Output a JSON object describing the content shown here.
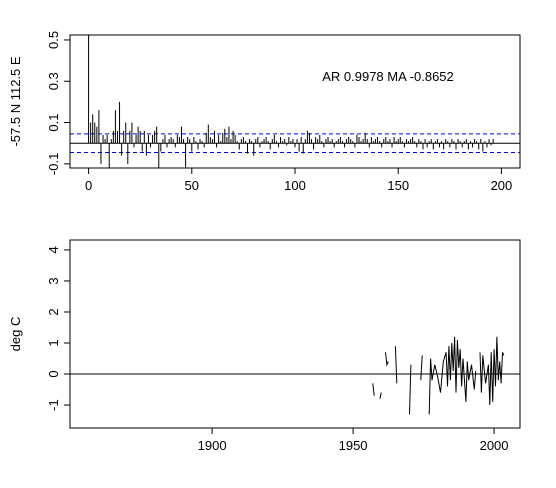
{
  "chart_data": [
    {
      "type": "acf",
      "ylabel": "-57.5 N 112.5 E",
      "annotation": "AR 0.9978  MA -0.8652",
      "xlim": [
        -9,
        209
      ],
      "xticks": [
        0,
        50,
        100,
        150,
        200
      ],
      "ylim": [
        -0.12,
        0.524
      ],
      "yticks": [
        -0.1,
        0.1,
        0.3,
        0.5
      ],
      "color": "#000000",
      "hline": 0,
      "ci": [
        0.045,
        -0.045
      ],
      "ci_color": "#0000ff",
      "x": [
        0,
        1,
        2,
        3,
        4,
        5,
        6,
        7,
        8,
        9,
        10,
        11,
        12,
        13,
        14,
        15,
        16,
        17,
        18,
        19,
        20,
        21,
        22,
        23,
        24,
        25,
        26,
        27,
        28,
        29,
        30,
        31,
        32,
        33,
        34,
        35,
        36,
        37,
        38,
        39,
        40,
        41,
        42,
        43,
        44,
        45,
        46,
        47,
        48,
        49,
        50,
        51,
        52,
        53,
        54,
        55,
        56,
        57,
        58,
        59,
        60,
        61,
        62,
        63,
        64,
        65,
        66,
        67,
        68,
        69,
        70,
        71,
        72,
        73,
        74,
        75,
        76,
        77,
        78,
        79,
        80,
        81,
        82,
        83,
        84,
        85,
        86,
        87,
        88,
        89,
        90,
        91,
        92,
        93,
        94,
        95,
        96,
        97,
        98,
        99,
        100,
        101,
        102,
        103,
        104,
        105,
        106,
        107,
        108,
        109,
        110,
        111,
        112,
        113,
        114,
        115,
        116,
        117,
        118,
        119,
        120,
        121,
        122,
        123,
        124,
        125,
        126,
        127,
        128,
        129,
        130,
        131,
        132,
        133,
        134,
        135,
        136,
        137,
        138,
        139,
        140,
        141,
        142,
        143,
        144,
        145,
        146,
        147,
        148,
        149,
        150,
        151,
        152,
        153,
        154,
        155,
        156,
        157,
        158,
        159,
        160,
        161,
        162,
        163,
        164,
        165,
        166,
        167,
        168,
        169,
        170,
        171,
        172,
        173,
        174,
        175,
        176,
        177,
        178,
        179,
        180,
        181,
        182,
        183,
        184,
        185,
        186,
        187,
        188,
        189,
        190,
        191,
        192,
        193,
        194,
        195,
        196
      ],
      "values": [
        1,
        0.1,
        0.14,
        0.1,
        0.08,
        0.16,
        -0.1,
        0.04,
        0.02,
        0.04,
        -0.12,
        0.02,
        0.06,
        0.16,
        0.06,
        0.2,
        -0.06,
        0.06,
        0.1,
        -0.1,
        0.06,
        0.1,
        -0.02,
        0.04,
        0.08,
        0.06,
        -0.04,
        0.06,
        -0.06,
        0.04,
        -0.02,
        0.04,
        0.06,
        0.08,
        -0.14,
        -0.04,
        0.02,
        0.04,
        -0.02,
        0.02,
        0.03,
        0.02,
        -0.02,
        0.04,
        0.03,
        0.08,
        0.02,
        -0.14,
        0.03,
        0.02,
        -0.04,
        0.03,
        0.01,
        -0.03,
        0.02,
        0.01,
        -0.02,
        0.05,
        0.09,
        0.03,
        0.02,
        0.06,
        -0.02,
        0.04,
        0.01,
        0.05,
        0.07,
        0.03,
        0.08,
        0.02,
        0.06,
        0.04,
        0.01,
        -0.03,
        0.02,
        0.03,
        0.01,
        -0.05,
        0.02,
        0.01,
        -0.06,
        0.02,
        0.03,
        -0.02,
        0.01,
        0.02,
        0.03,
        0.01,
        -0.03,
        0.02,
        0.04,
        0.01,
        -0.02,
        0.03,
        0.01,
        0.02,
        -0.01,
        0.03,
        0.01,
        0.02,
        -0.02,
        0.02,
        -0.04,
        0.03,
        -0.05,
        0.02,
        0.06,
        0.05,
        0.02,
        -0.03,
        0.03,
        0.02,
        0.04,
        0.01,
        -0.02,
        0.02,
        0.03,
        0.01,
        0.02,
        -0.02,
        0.01,
        0.02,
        0.03,
        0.01,
        -0.02,
        0.02,
        0.03,
        0.02,
        0.01,
        -0.02,
        0.04,
        0.03,
        0.01,
        0.02,
        0.05,
        0.02,
        -0.02,
        0.03,
        0.01,
        0.02,
        0.03,
        0.01,
        -0.02,
        0.02,
        0.03,
        0.01,
        0.02,
        -0.02,
        0.03,
        0.01,
        0.02,
        0.03,
        0.01,
        -0.02,
        0.02,
        0.01,
        0.02,
        0.03,
        0.01,
        -0.02,
        0.02,
        0.01,
        -0.03,
        0.02,
        -0.02,
        0.01,
        0.02,
        -0.03,
        0.01,
        0.02,
        -0.02,
        0.01,
        -0.03,
        0.02,
        0.01,
        -0.02,
        0.02,
        0.01,
        -0.03,
        0.02,
        0.01,
        -0.02,
        0.01,
        0.02,
        -0.03,
        0.01,
        -0.02,
        0.02,
        0.01,
        -0.03,
        0.02,
        -0.04,
        0.01,
        -0.02,
        0.02,
        -0.01,
        0.02
      ]
    },
    {
      "type": "line",
      "ylabel": "deg C",
      "xlim": [
        1849.6,
        2009.2
      ],
      "xticks": [
        1900,
        1950,
        2000
      ],
      "ylim": [
        -1.74,
        4.32
      ],
      "yticks": [
        -1,
        0,
        1,
        2,
        3,
        4
      ],
      "color": "#000000",
      "hline": 0,
      "x": [
        1957,
        1957.5,
        1958,
        1959.5,
        1960,
        1960.5,
        1961.5,
        1962,
        1962.5,
        1963,
        1965,
        1965.5,
        1966,
        1970,
        1970.5,
        1971,
        1974,
        1974.5,
        1975,
        1977,
        1977.5,
        1978,
        1979,
        1980,
        1981,
        1982,
        1983,
        1983.5,
        1984,
        1984.5,
        1985,
        1985.5,
        1986,
        1986.5,
        1987,
        1987.5,
        1988,
        1988.5,
        1989,
        1990,
        1990.5,
        1991,
        1992,
        1993,
        1993.5,
        1994,
        1995,
        1995.5,
        1996,
        1997,
        1998,
        1998.5,
        1999,
        1999.5,
        2000,
        2000.5,
        2001,
        2001.5,
        2002,
        2002.5,
        2003,
        2003.5
      ],
      "values": [
        -0.3,
        -0.7,
        null,
        -0.8,
        -0.6,
        null,
        0.7,
        0.3,
        0.4,
        null,
        0.9,
        -0.3,
        null,
        -1.3,
        0.3,
        null,
        -0.2,
        0.6,
        null,
        -1.3,
        0.5,
        -0.2,
        0.3,
        -0.1,
        -0.6,
        0.4,
        0.7,
        -0.4,
        0.9,
        -0.2,
        1.0,
        0.1,
        1.2,
        -0.6,
        1.1,
        0.2,
        0.8,
        -0.4,
        0.5,
        -0.9,
        0.4,
        -0.2,
        0.3,
        -0.5,
        0.1,
        null,
        0.7,
        -0.6,
        0.6,
        -0.3,
        0.3,
        -1.0,
        0.7,
        -0.9,
        0.8,
        -0.4,
        1.2,
        -0.2,
        0.4,
        -0.3,
        0.7,
        0.6
      ]
    }
  ]
}
